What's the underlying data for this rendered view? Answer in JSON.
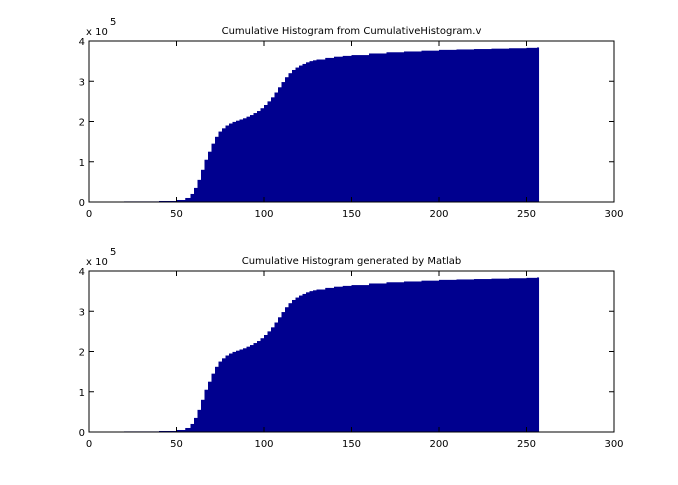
{
  "figure": {
    "background": "#ffffff",
    "bar_color": "#00008f"
  },
  "chart_data": [
    {
      "type": "bar",
      "title": "Cumulative Histogram from CumulativeHistogram.v",
      "xlabel": "",
      "ylabel": "",
      "xlim": [
        0,
        300
      ],
      "ylim": [
        0,
        400000
      ],
      "xticks": [
        0,
        50,
        100,
        150,
        200,
        250,
        300
      ],
      "yticks": [
        0,
        1,
        2,
        3,
        4
      ],
      "y_exponent_label": "x 10",
      "y_exponent_power": "5",
      "grid": false,
      "x": [
        5,
        20,
        40,
        50,
        55,
        58,
        60,
        62,
        64,
        66,
        68,
        70,
        72,
        74,
        76,
        78,
        80,
        82,
        84,
        86,
        88,
        90,
        92,
        94,
        96,
        98,
        100,
        102,
        104,
        106,
        108,
        110,
        112,
        114,
        116,
        118,
        120,
        122,
        124,
        126,
        128,
        130,
        135,
        140,
        145,
        150,
        160,
        170,
        180,
        190,
        200,
        210,
        220,
        230,
        240,
        250,
        256
      ],
      "values": [
        1000,
        1500,
        2500,
        5000,
        10000,
        20000,
        35000,
        55000,
        80000,
        105000,
        125000,
        145000,
        162000,
        175000,
        183000,
        190000,
        195000,
        199000,
        202000,
        205000,
        208000,
        212000,
        216000,
        221000,
        226000,
        233000,
        241000,
        250000,
        260000,
        272000,
        285000,
        298000,
        310000,
        320000,
        328000,
        334000,
        339000,
        343000,
        347000,
        350000,
        352000,
        354000,
        358000,
        361000,
        363000,
        365000,
        369000,
        372000,
        374000,
        376000,
        378000,
        379000,
        380000,
        381000,
        382000,
        383000,
        384000
      ]
    },
    {
      "type": "bar",
      "title": "Cumulative Histogram generated by Matlab",
      "xlabel": "",
      "ylabel": "",
      "xlim": [
        0,
        300
      ],
      "ylim": [
        0,
        400000
      ],
      "xticks": [
        0,
        50,
        100,
        150,
        200,
        250,
        300
      ],
      "yticks": [
        0,
        1,
        2,
        3,
        4
      ],
      "y_exponent_label": "x 10",
      "y_exponent_power": "5",
      "grid": false,
      "x": [
        5,
        20,
        40,
        50,
        55,
        58,
        60,
        62,
        64,
        66,
        68,
        70,
        72,
        74,
        76,
        78,
        80,
        82,
        84,
        86,
        88,
        90,
        92,
        94,
        96,
        98,
        100,
        102,
        104,
        106,
        108,
        110,
        112,
        114,
        116,
        118,
        120,
        122,
        124,
        126,
        128,
        130,
        135,
        140,
        145,
        150,
        160,
        170,
        180,
        190,
        200,
        210,
        220,
        230,
        240,
        250,
        256
      ],
      "values": [
        1000,
        1500,
        2500,
        5000,
        10000,
        20000,
        35000,
        55000,
        80000,
        105000,
        125000,
        145000,
        162000,
        175000,
        183000,
        190000,
        195000,
        199000,
        202000,
        205000,
        208000,
        212000,
        216000,
        221000,
        226000,
        233000,
        241000,
        250000,
        260000,
        272000,
        285000,
        298000,
        310000,
        320000,
        328000,
        334000,
        339000,
        343000,
        347000,
        350000,
        352000,
        354000,
        358000,
        361000,
        363000,
        365000,
        369000,
        372000,
        374000,
        376000,
        378000,
        379000,
        380000,
        381000,
        382000,
        383000,
        384000
      ]
    }
  ]
}
